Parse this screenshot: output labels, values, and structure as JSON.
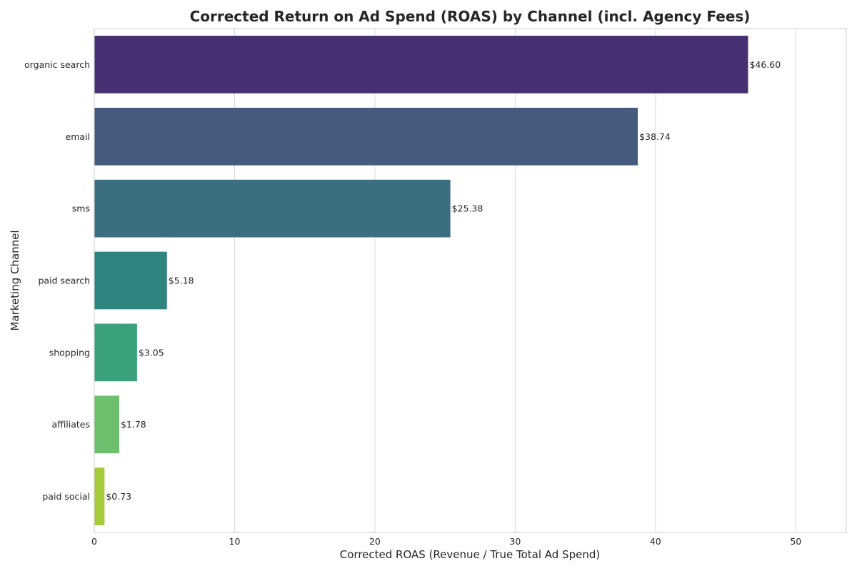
{
  "chart_data": {
    "type": "bar",
    "orientation": "horizontal",
    "title": "Corrected Return on Ad Spend (ROAS) by Channel (incl. Agency Fees)",
    "xlabel": "Corrected ROAS (Revenue / True Total Ad Spend)",
    "ylabel": "Marketing Channel",
    "categories": [
      "organic search",
      "email",
      "sms",
      "paid search",
      "shopping",
      "affiliates",
      "paid social"
    ],
    "values": [
      46.6,
      38.74,
      25.38,
      5.18,
      3.05,
      1.78,
      0.73
    ],
    "data_labels": [
      "$46.60",
      "$38.74",
      "$25.38",
      "$5.18",
      "$3.05",
      "$1.78",
      "$0.73"
    ],
    "colors": [
      "#482f72",
      "#46597f",
      "#3b6e80",
      "#2e8580",
      "#3ba27c",
      "#6dbe6d",
      "#a3cb3c"
    ],
    "xlim": [
      0,
      53.6
    ],
    "xticks": [
      0,
      10,
      20,
      30,
      40,
      50
    ],
    "xtick_labels": [
      "0",
      "10",
      "20",
      "30",
      "40",
      "50"
    ],
    "grid": true,
    "legend": "none"
  }
}
